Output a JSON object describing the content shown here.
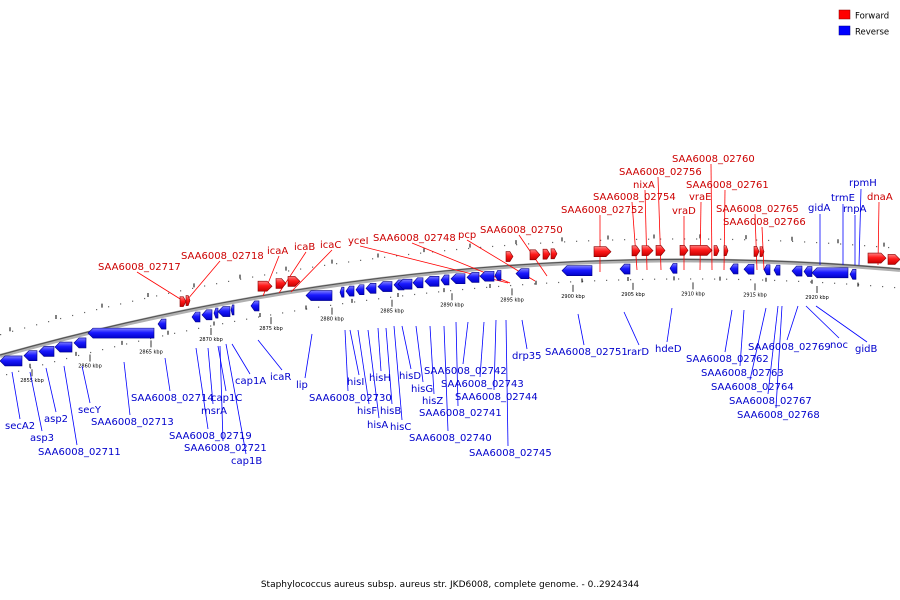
{
  "legend": {
    "forward_label": "Forward",
    "reverse_label": "Reverse",
    "forward_color": "#ff0000",
    "reverse_color": "#0000ff"
  },
  "caption": "Staphylococcus aureus subsp. aureus str. JKD6008, complete genome. - 0..2924344",
  "ticks": [
    "2855 kbp",
    "2860 kbp",
    "2865 kbp",
    "2870 kbp",
    "2875 kbp",
    "2880 kbp",
    "2885 kbp",
    "2890 kbp",
    "2895 kbp",
    "2900 kbp",
    "2905 kbp",
    "2910 kbp",
    "2915 kbp",
    "2920 kbp"
  ],
  "forward_genes": [
    "SAA6008_02717",
    "SAA6008_02718",
    "icaA",
    "icaB",
    "icaC",
    "yceI",
    "SAA6008_02748",
    "pcp",
    "SAA6008_02750",
    "SAA6008_02752",
    "SAA6008_02754",
    "nixA",
    "SAA6008_02756",
    "SAA6008_02760",
    "vraD",
    "vraE",
    "SAA6008_02761",
    "SAA6008_02765",
    "SAA6008_02766",
    "dnaA"
  ],
  "reverse_genes": [
    "secA2",
    "asp3",
    "asp2",
    "SAA6008_02711",
    "secY",
    "SAA6008_02713",
    "SAA6008_02714",
    "SAA6008_02719",
    "msrA",
    "cap1C",
    "SAA6008_02721",
    "cap1B",
    "cap1A",
    "icaR",
    "lip",
    "SAA6008_02730",
    "hisI",
    "hisF",
    "hisA",
    "hisH",
    "hisB",
    "hisC",
    "hisD",
    "hisG",
    "hisZ",
    "SAA6008_02740",
    "SAA6008_02741",
    "SAA6008_02742",
    "SAA6008_02743",
    "SAA6008_02744",
    "SAA6008_02745",
    "drp35",
    "SAA6008_02751",
    "rarD",
    "hdeD",
    "SAA6008_02762",
    "SAA6008_02763",
    "SAA6008_02764",
    "SAA6008_02767",
    "SAA6008_02768",
    "SAA6008_02769",
    "noc",
    "gidB",
    "gidA",
    "trmE",
    "rnpA",
    "rpmH"
  ]
}
